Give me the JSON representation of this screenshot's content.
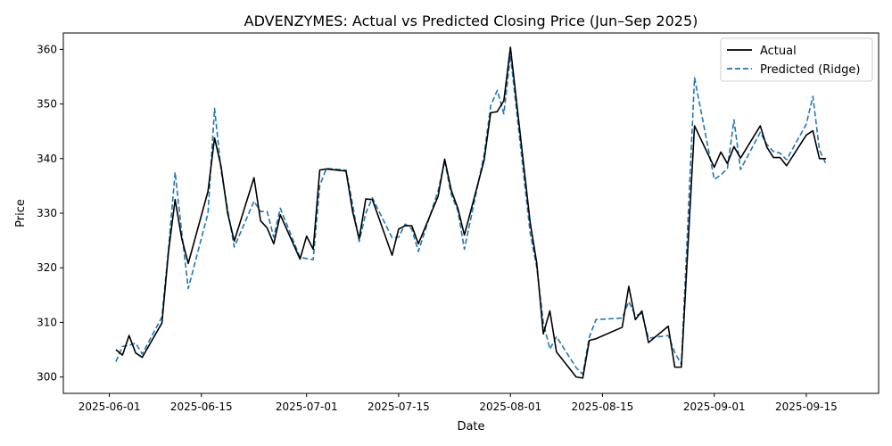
{
  "chart_data": {
    "type": "line",
    "title": "ADVENZYMES: Actual vs Predicted Closing Price (Jun–Sep 2025)",
    "xlabel": "Date",
    "ylabel": "Price",
    "xlim": [
      "2025-05-25",
      "2025-09-26"
    ],
    "ylim": [
      297,
      363
    ],
    "x_ticks": [
      "2025-06-01",
      "2025-06-15",
      "2025-07-01",
      "2025-07-15",
      "2025-08-01",
      "2025-08-15",
      "2025-09-01",
      "2025-09-15"
    ],
    "y_ticks": [
      300,
      310,
      320,
      330,
      340,
      350,
      360
    ],
    "grid": false,
    "legend_position": "top-right",
    "series": [
      {
        "name": "Actual",
        "color": "#000000",
        "style": "solid",
        "points": [
          [
            "2025-06-02",
            305.0
          ],
          [
            "2025-06-03",
            304.0
          ],
          [
            "2025-06-04",
            307.6
          ],
          [
            "2025-06-05",
            304.4
          ],
          [
            "2025-06-06",
            303.6
          ],
          [
            "2025-06-09",
            309.9
          ],
          [
            "2025-06-10",
            323.0
          ],
          [
            "2025-06-11",
            332.5
          ],
          [
            "2025-06-12",
            325.4
          ],
          [
            "2025-06-13",
            320.8
          ],
          [
            "2025-06-16",
            334.0
          ],
          [
            "2025-06-17",
            343.8
          ],
          [
            "2025-06-18",
            338.5
          ],
          [
            "2025-06-19",
            329.9
          ],
          [
            "2025-06-20",
            324.9
          ],
          [
            "2025-06-23",
            336.5
          ],
          [
            "2025-06-24",
            328.6
          ],
          [
            "2025-06-25",
            327.3
          ],
          [
            "2025-06-26",
            324.4
          ],
          [
            "2025-06-27",
            329.7
          ],
          [
            "2025-06-30",
            321.6
          ],
          [
            "2025-07-01",
            325.8
          ],
          [
            "2025-07-02",
            323.4
          ],
          [
            "2025-07-03",
            337.9
          ],
          [
            "2025-07-04",
            338.1
          ],
          [
            "2025-07-07",
            337.7
          ],
          [
            "2025-07-08",
            330.3
          ],
          [
            "2025-07-09",
            325.3
          ],
          [
            "2025-07-10",
            332.6
          ],
          [
            "2025-07-11",
            332.5
          ],
          [
            "2025-07-14",
            322.3
          ],
          [
            "2025-07-15",
            327.1
          ],
          [
            "2025-07-16",
            327.7
          ],
          [
            "2025-07-17",
            327.7
          ],
          [
            "2025-07-18",
            324.4
          ],
          [
            "2025-07-21",
            333.1
          ],
          [
            "2025-07-22",
            339.9
          ],
          [
            "2025-07-23",
            334.2
          ],
          [
            "2025-07-24",
            330.9
          ],
          [
            "2025-07-25",
            326.0
          ],
          [
            "2025-07-28",
            339.7
          ],
          [
            "2025-07-29",
            348.4
          ],
          [
            "2025-07-30",
            348.6
          ],
          [
            "2025-07-31",
            350.6
          ],
          [
            "2025-08-01",
            360.4
          ],
          [
            "2025-08-04",
            328.3
          ],
          [
            "2025-08-05",
            320.9
          ],
          [
            "2025-08-06",
            307.9
          ],
          [
            "2025-08-07",
            312.1
          ],
          [
            "2025-08-08",
            304.6
          ],
          [
            "2025-08-11",
            300.0
          ],
          [
            "2025-08-12",
            299.8
          ],
          [
            "2025-08-13",
            306.7
          ],
          [
            "2025-08-14",
            307.0
          ],
          [
            "2025-08-18",
            309.1
          ],
          [
            "2025-08-19",
            316.6
          ],
          [
            "2025-08-20",
            310.5
          ],
          [
            "2025-08-21",
            312.1
          ],
          [
            "2025-08-22",
            306.3
          ],
          [
            "2025-08-25",
            309.3
          ],
          [
            "2025-08-26",
            301.8
          ],
          [
            "2025-08-27",
            301.8
          ],
          [
            "2025-08-29",
            346.0
          ],
          [
            "2025-09-01",
            338.4
          ],
          [
            "2025-09-02",
            341.2
          ],
          [
            "2025-09-03",
            339.1
          ],
          [
            "2025-09-04",
            342.2
          ],
          [
            "2025-09-05",
            340.1
          ],
          [
            "2025-09-08",
            346.0
          ],
          [
            "2025-09-09",
            342.1
          ],
          [
            "2025-09-10",
            340.2
          ],
          [
            "2025-09-11",
            340.2
          ],
          [
            "2025-09-12",
            338.7
          ],
          [
            "2025-09-15",
            344.3
          ],
          [
            "2025-09-16",
            345.1
          ],
          [
            "2025-09-17",
            340.0
          ],
          [
            "2025-09-18",
            340.0
          ]
        ]
      },
      {
        "name": "Predicted (Ridge)",
        "color": "#1f77b4",
        "style": "dashed",
        "points": [
          [
            "2025-06-02",
            302.8
          ],
          [
            "2025-06-03",
            305.6
          ],
          [
            "2025-06-04",
            305.8
          ],
          [
            "2025-06-05",
            306.2
          ],
          [
            "2025-06-06",
            304.2
          ],
          [
            "2025-06-09",
            311.0
          ],
          [
            "2025-06-10",
            323.5
          ],
          [
            "2025-06-11",
            337.5
          ],
          [
            "2025-06-12",
            326.6
          ],
          [
            "2025-06-13",
            316.2
          ],
          [
            "2025-06-16",
            330.0
          ],
          [
            "2025-06-17",
            349.2
          ],
          [
            "2025-06-18",
            337.8
          ],
          [
            "2025-06-19",
            330.6
          ],
          [
            "2025-06-20",
            323.8
          ],
          [
            "2025-06-23",
            332.2
          ],
          [
            "2025-06-24",
            330.3
          ],
          [
            "2025-06-25",
            330.3
          ],
          [
            "2025-06-26",
            325.6
          ],
          [
            "2025-06-27",
            330.9
          ],
          [
            "2025-06-30",
            321.9
          ],
          [
            "2025-07-01",
            321.7
          ],
          [
            "2025-07-02",
            321.5
          ],
          [
            "2025-07-03",
            335.0
          ],
          [
            "2025-07-04",
            338.2
          ],
          [
            "2025-07-07",
            337.9
          ],
          [
            "2025-07-08",
            331.6
          ],
          [
            "2025-07-09",
            324.8
          ],
          [
            "2025-07-10",
            330.0
          ],
          [
            "2025-07-11",
            332.8
          ],
          [
            "2025-07-14",
            325.5
          ],
          [
            "2025-07-15",
            325.6
          ],
          [
            "2025-07-16",
            328.0
          ],
          [
            "2025-07-17",
            327.1
          ],
          [
            "2025-07-18",
            323.0
          ],
          [
            "2025-07-21",
            334.1
          ],
          [
            "2025-07-22",
            339.6
          ],
          [
            "2025-07-23",
            333.4
          ],
          [
            "2025-07-24",
            330.5
          ],
          [
            "2025-07-25",
            323.4
          ],
          [
            "2025-07-28",
            340.7
          ],
          [
            "2025-07-29",
            349.7
          ],
          [
            "2025-07-30",
            352.5
          ],
          [
            "2025-07-31",
            348.2
          ],
          [
            "2025-08-01",
            358.9
          ],
          [
            "2025-08-04",
            326.4
          ],
          [
            "2025-08-05",
            320.1
          ],
          [
            "2025-08-06",
            310.0
          ],
          [
            "2025-08-07",
            305.1
          ],
          [
            "2025-08-08",
            307.4
          ],
          [
            "2025-08-11",
            301.7
          ],
          [
            "2025-08-12",
            300.5
          ],
          [
            "2025-08-13",
            307.3
          ],
          [
            "2025-08-14",
            310.5
          ],
          [
            "2025-08-18",
            310.8
          ],
          [
            "2025-08-19",
            313.8
          ],
          [
            "2025-08-20",
            311.3
          ],
          [
            "2025-08-21",
            311.6
          ],
          [
            "2025-08-22",
            307.1
          ],
          [
            "2025-08-25",
            307.6
          ],
          [
            "2025-08-26",
            304.5
          ],
          [
            "2025-08-27",
            302.3
          ],
          [
            "2025-08-29",
            354.8
          ],
          [
            "2025-09-01",
            336.2
          ],
          [
            "2025-09-02",
            337.0
          ],
          [
            "2025-09-03",
            338.2
          ],
          [
            "2025-09-04",
            347.1
          ],
          [
            "2025-09-05",
            338.0
          ],
          [
            "2025-09-08",
            344.8
          ],
          [
            "2025-09-09",
            342.6
          ],
          [
            "2025-09-10",
            341.3
          ],
          [
            "2025-09-11",
            341.0
          ],
          [
            "2025-09-12",
            339.8
          ],
          [
            "2025-09-15",
            346.3
          ],
          [
            "2025-09-16",
            351.4
          ],
          [
            "2025-09-17",
            341.6
          ],
          [
            "2025-09-18",
            339.0
          ]
        ]
      }
    ]
  }
}
